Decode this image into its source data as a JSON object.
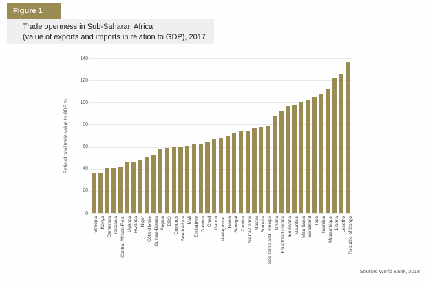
{
  "figure_label": "Figure 1",
  "header": {
    "title_line1": "Trade openness in Sub-Saharan Africa",
    "title_line2": "(value of exports and imports in relation to GDP), 2017"
  },
  "source": "Source: World Bank, 2018",
  "colors": {
    "accent": "#9a8b52",
    "bar": "#9a8b52",
    "title_band_bg": "#f0eff0",
    "grid": "#e9e9e6",
    "tick_text": "#595959",
    "category_text": "#3c3c3c",
    "title_text": "#1f1f1f"
  },
  "chart_data": {
    "type": "bar",
    "title": "Trade openness in Sub-Saharan Africa (value of exports and imports in relation to GDP), 2017",
    "xlabel": "",
    "ylabel": "Ratio of total trade value to GDP %",
    "ylim": [
      0,
      140
    ],
    "yticks": [
      0,
      20,
      40,
      60,
      80,
      100,
      120,
      140
    ],
    "grid": true,
    "legend": false,
    "categories": [
      "Ethiopia",
      "Kenya",
      "Cameroon",
      "Tanzania",
      "Central African Rep.",
      "Uganda",
      "Rwanda",
      "Niger",
      "Côte d'Ivoire",
      "Guinea-Bissau",
      "Angola",
      "DRC",
      "Comoros",
      "South Africa",
      "Mali",
      "Zimbabwe",
      "Gambia",
      "Chad",
      "Gabon",
      "Madagascar",
      "Benin",
      "Senegal",
      "Zambia",
      "Sierra-Leone",
      "Malawi",
      "Somalia",
      "Sao Tome and Principe",
      "Ghana",
      "Equatorial Guinea",
      "Botswana",
      "Mauritius",
      "Mauritania",
      "Swaziland",
      "Togo",
      "Namibia",
      "Mozambique",
      "Liberia",
      "Lesotho",
      "Republic of Congo"
    ],
    "values": [
      36,
      37,
      41,
      41,
      42,
      46,
      47,
      48,
      51,
      52,
      58,
      59,
      60,
      60,
      61,
      62,
      63,
      65,
      67,
      68,
      70,
      73,
      74,
      75,
      77,
      78,
      79,
      88,
      93,
      97,
      98,
      100,
      102,
      105,
      108,
      112,
      122,
      126,
      137
    ],
    "source": "Source: World Bank, 2018"
  }
}
